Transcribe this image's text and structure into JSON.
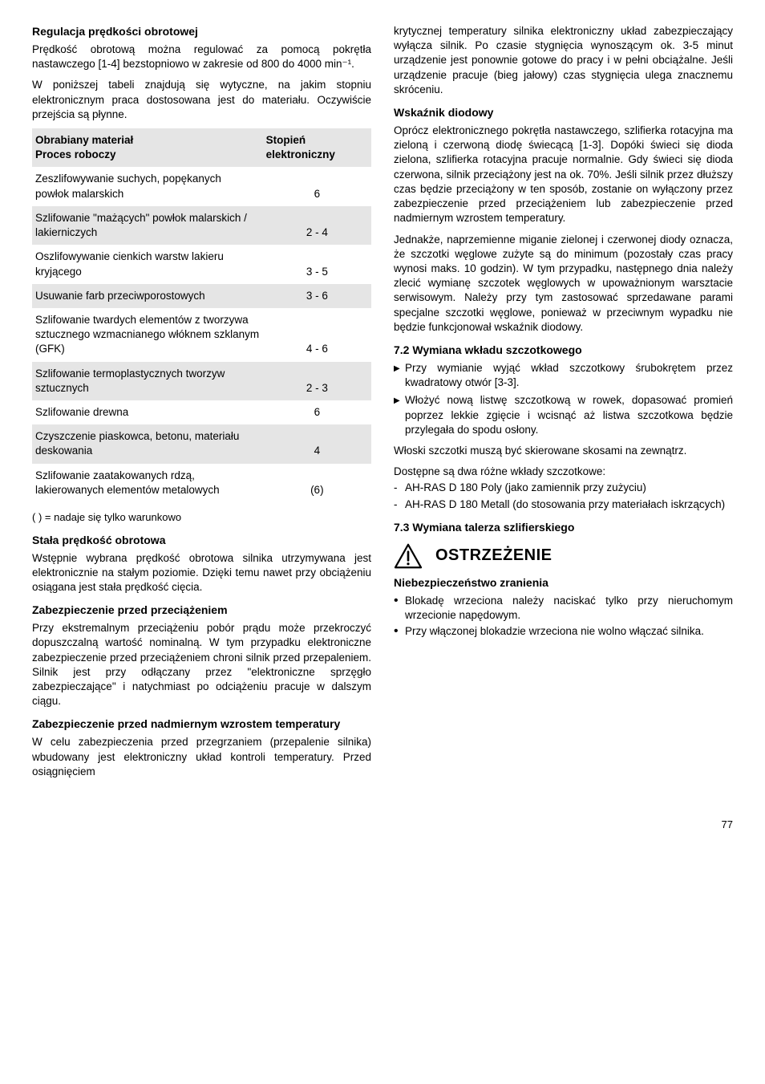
{
  "left": {
    "h_reg": "Regulacja prędkości obrotowej",
    "p_reg1": "Prędkość obrotową można regulować za pomocą pokrętła nastawczego [1-4] bezstopniowo w zakresie od 800 do 4000 min⁻¹.",
    "p_reg2": "W poniższej tabeli znajdują się wytyczne, na jakim stopniu elektronicznym praca dostosowana jest do materiału. Oczywiście przejścia są płynne.",
    "table": {
      "header_left": "Obrabiany materiał\nProces roboczy",
      "header_right": "Stopień elektroniczny",
      "rows": [
        {
          "mat": "Zeszlifowywanie suchych, popękanych\npowłok malarskich",
          "step": "6",
          "shaded": false
        },
        {
          "mat": "Szlifowanie \"mażących\" powłok malarskich / lakierniczych",
          "step": "2 - 4",
          "shaded": true
        },
        {
          "mat": "Oszlifowywanie cienkich warstw lakieru kryjącego",
          "step": "3 - 5",
          "shaded": false
        },
        {
          "mat": "Usuwanie farb przeciwporostowych",
          "step": "3 - 6",
          "shaded": true
        },
        {
          "mat": "Szlifowanie twardych elementów z tworzywa sztucznego wzmacnianego włóknem szklanym (GFK)",
          "step": "4 - 6",
          "shaded": false
        },
        {
          "mat": "Szlifowanie termoplastycznych tworzyw sztucznych",
          "step": "2 - 3",
          "shaded": true
        },
        {
          "mat": "Szlifowanie drewna",
          "step": "6",
          "shaded": false
        },
        {
          "mat": "Czyszczenie piaskowca, betonu, materiału deskowania",
          "step": "4",
          "shaded": true
        },
        {
          "mat": "Szlifowanie zaatakowanych rdzą, lakierowanych elementów metalowych",
          "step": "(6)",
          "shaded": false
        }
      ]
    },
    "footnote": "( ) = nadaje się tylko warunkowo",
    "h_stala": "Stała prędkość obrotowa",
    "p_stala": "Wstępnie wybrana prędkość obrotowa silnika utrzymywana jest elektronicznie na stałym poziomie. Dzięki temu nawet przy obciążeniu osiągana jest stała prędkość cięcia.",
    "h_zab1": "Zabezpieczenie przed przeciążeniem",
    "p_zab1": "Przy ekstremalnym przeciążeniu pobór prądu może przekroczyć dopuszczalną wartość nominalną. W tym przypadku elektroniczne zabezpieczenie przed przeciążeniem chroni silnik przed przepaleniem. Silnik jest przy odłączany przez \"elektroniczne sprzęgło zabezpieczające\" i natychmiast po odciążeniu pracuje w dalszym ciągu.",
    "h_zab2": "Zabezpieczenie przed nadmiernym wzrostem temperatury",
    "p_zab2": "W celu zabezpieczenia przed przegrzaniem (przepalenie silnika) wbudowany jest elektroniczny układ kontroli temperatury. Przed osiągnięciem"
  },
  "right": {
    "p_cont": "krytycznej temperatury silnika elektroniczny układ zabezpieczający wyłącza silnik. Po czasie stygnięcia wynoszącym ok. 3-5 minut urządzenie jest ponownie gotowe do pracy i w pełni obciążalne. Jeśli urządzenie pracuje (bieg jałowy) czas stygnięcia ulega znacznemu skróceniu.",
    "h_wsk": "Wskaźnik diodowy",
    "p_wsk1": "Oprócz elektronicznego pokrętła nastawczego, szlifierka rotacyjna ma zieloną i czerwoną diodę świecącą [1-3]. Dopóki świeci się dioda zielona, szlifierka rotacyjna pracuje normalnie. Gdy świeci się dioda czerwona, silnik przeciążony jest na ok. 70%. Jeśli silnik przez dłuższy czas będzie przeciążony w ten sposób, zostanie on wyłączony przez zabezpieczenie przed przeciążeniem lub zabezpieczenie przed nadmiernym wzrostem temperatury.",
    "p_wsk2": "Jednakże, naprzemienne miganie  zielonej i czerwonej diody oznacza, że szczotki węglowe zużyte są do minimum (pozostały czas pracy wynosi maks. 10 godzin). W tym przypadku, następnego dnia należy zlecić wymianę szczotek węglowych w upoważnionym warsztacie serwisowym. Należy przy tym zastosować sprzedawane parami specjalne szczotki węglowe, ponieważ w przeciwnym wypadku nie będzie funkcjonował wskaźnik diodowy.",
    "h_72": "7.2   Wymiana wkładu szczotkowego",
    "b72_1": "Przy wymianie wyjąć wkład szczotkowy śrubokrętem przez kwadratowy otwór [3-3].",
    "b72_2": "Włożyć nową listwę szczotkową w rowek, dopasować promień poprzez lekkie zgięcie i wcisnąć aż listwa szczotkowa będzie przylegała do spodu osłony.",
    "p_72a": "Włoski szczotki muszą być skierowane skosami na zewnątrz.",
    "p_72b": "Dostępne są dwa różne wkłady szczotkowe:",
    "d72_1": "AH-RAS D 180 Poly (jako zamiennik przy zużyciu)",
    "d72_2": "AH-RAS D 180 Metall (do stosowania przy materiałach iskrzących)",
    "h_73": "7.3   Wymiana talerza szlifierskiego",
    "warn_title": "OSTRZEŻENIE",
    "h_nieb": "Niebezpieczeństwo zranienia",
    "dot1": "Blokadę wrzeciona należy naciskać tylko przy nieruchomym wrzecionie napędowym.",
    "dot2": "Przy włączonej blokadzie wrzeciona nie wolno włączać silnika."
  },
  "page": "77"
}
